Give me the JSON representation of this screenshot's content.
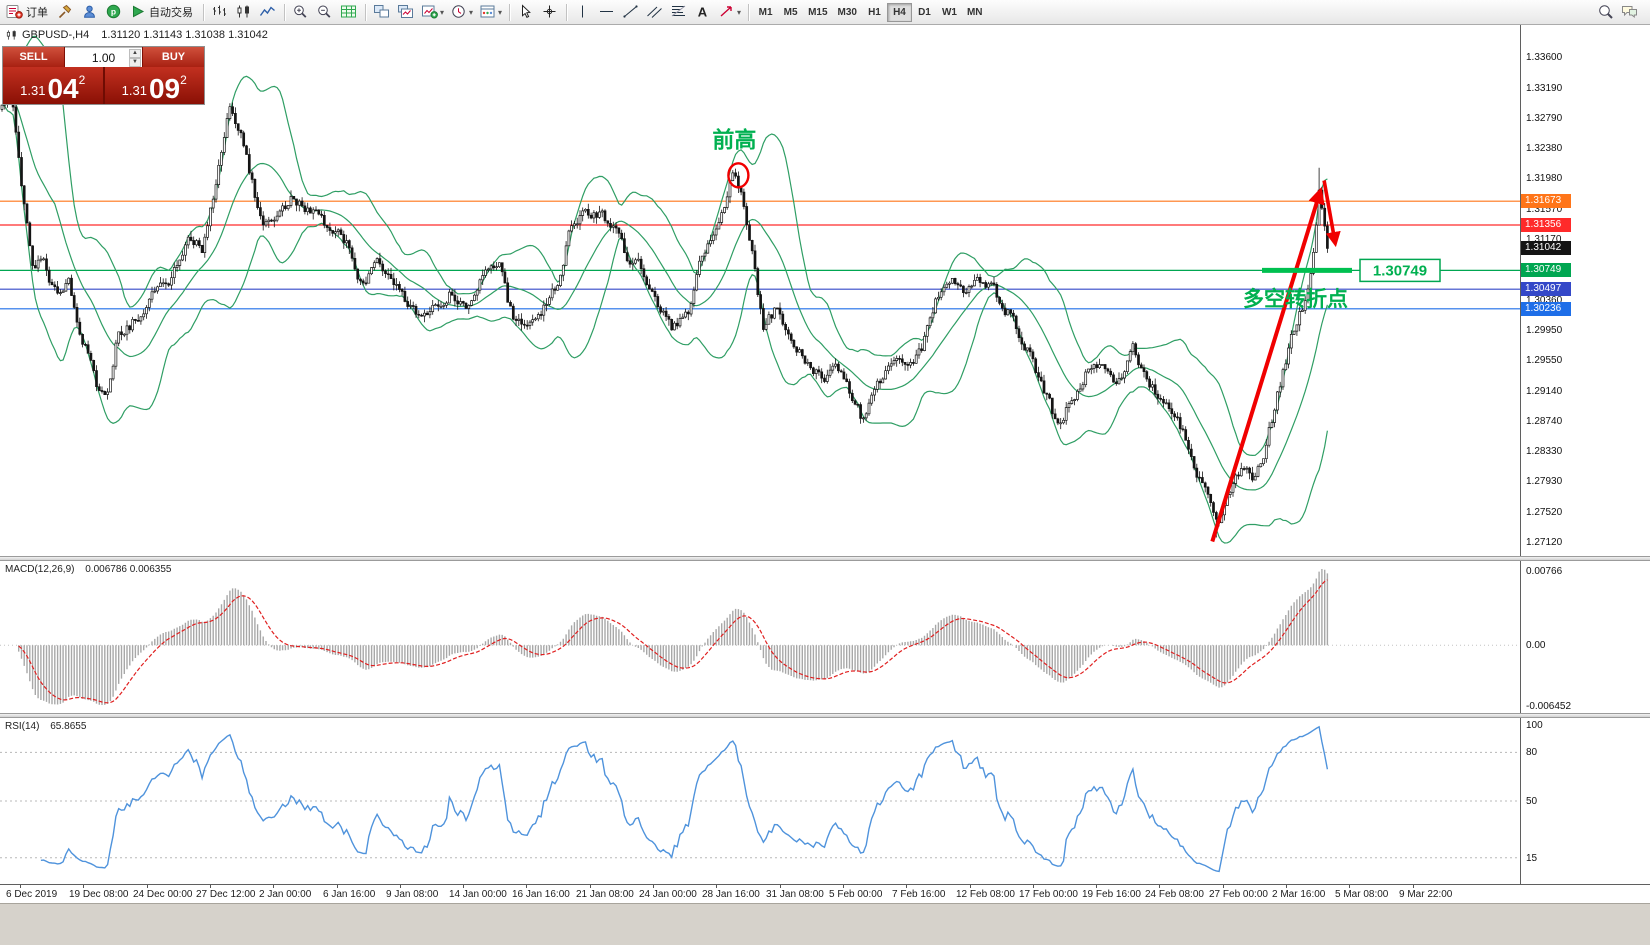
{
  "glyphs": {
    "caret_down": "▾",
    "spinner_up": "▲",
    "spinner_down": "▼"
  },
  "colors": {
    "band_green": "#2f9e64",
    "candle": "#151515",
    "level_orange": "#ff7519",
    "level_red": "#ff2a2a",
    "level_green": "#00a651",
    "level_blue1": "#3448c8",
    "level_blue2": "#1e6ee8",
    "macd_hist": "#a8a8a8",
    "macd_signal": "#e02020",
    "rsi_line": "#4f93dc",
    "annotation_green": "#00b050",
    "annotation_red": "#f00000"
  },
  "toolbar": {
    "groups": [
      {
        "name": "orders",
        "items": [
          {
            "icon": "new-order-icon",
            "label": "订单"
          },
          {
            "icon": "hammer-icon"
          },
          {
            "icon": "profile-icon"
          },
          {
            "icon": "community-icon"
          },
          {
            "icon": "autotrade-icon",
            "label": "自动交易"
          }
        ]
      },
      {
        "name": "chart-types",
        "items": [
          {
            "icon": "bar-chart-icon"
          },
          {
            "icon": "candle-chart-icon"
          },
          {
            "icon": "line-chart-icon"
          }
        ]
      },
      {
        "name": "zoom",
        "items": [
          {
            "icon": "zoom-in-icon"
          },
          {
            "icon": "zoom-out-icon"
          },
          {
            "icon": "indicators-icon"
          }
        ]
      },
      {
        "name": "windows",
        "items": [
          {
            "icon": "tile-windows-icon"
          },
          {
            "icon": "cascade-windows-icon"
          },
          {
            "icon": "new-chart-icon",
            "caret": true
          },
          {
            "icon": "clock-icon",
            "caret": true
          },
          {
            "icon": "template-icon",
            "caret": true
          }
        ]
      },
      {
        "name": "pointer",
        "items": [
          {
            "icon": "cursor-icon"
          },
          {
            "icon": "crosshair-icon"
          }
        ]
      },
      {
        "name": "draw",
        "items": [
          {
            "icon": "vline-icon"
          },
          {
            "icon": "hline-icon"
          },
          {
            "icon": "trendline-icon"
          },
          {
            "icon": "channel-icon"
          },
          {
            "icon": "fibonacci-icon"
          },
          {
            "icon": "text-icon"
          },
          {
            "icon": "arrows-icon",
            "caret": true
          }
        ]
      }
    ],
    "timeframes": [
      "M1",
      "M5",
      "M15",
      "M30",
      "H1",
      "H4",
      "D1",
      "W1",
      "MN"
    ],
    "active_timeframe": "H4",
    "right_items": [
      {
        "icon": "search-icon"
      },
      {
        "icon": "chat-icon"
      }
    ]
  },
  "chart_header": {
    "symbol_period": "GBPUSD-,H4",
    "ohlc": "1.31120 1.31143 1.31038 1.31042"
  },
  "trade_panel": {
    "sell_label": "SELL",
    "buy_label": "BUY",
    "volume": "1.00",
    "sell_price_prefix": "1.31",
    "sell_price_big": "04",
    "sell_price_sup": "2",
    "buy_price_prefix": "1.31",
    "buy_price_big": "09",
    "buy_price_sup": "2"
  },
  "price_axis": {
    "scale_labels": [
      "1.33600",
      "1.33190",
      "1.32790",
      "1.32380",
      "1.31980",
      "1.31570",
      "1.31170",
      "1.30760",
      "1.30360",
      "1.29950",
      "1.29550",
      "1.29140",
      "1.28740",
      "1.28330",
      "1.27930",
      "1.27520",
      "1.27120"
    ],
    "markers": [
      {
        "label": "1.31673",
        "value": 1.31673,
        "bg": "#ff7519"
      },
      {
        "label": "1.31356",
        "value": 1.31356,
        "bg": "#ff2a2a"
      },
      {
        "label": "1.31042",
        "value": 1.31042,
        "bg": "#141414"
      },
      {
        "label": "1.30749",
        "value": 1.30749,
        "bg": "#00a651"
      },
      {
        "label": "1.30497",
        "value": 1.30497,
        "bg": "#3448c8"
      },
      {
        "label": "1.30236",
        "value": 1.30236,
        "bg": "#1e6ee8"
      }
    ]
  },
  "levels": [
    {
      "value": 1.31673,
      "color": "#ff7519"
    },
    {
      "value": 1.31356,
      "color": "#ff2a2a"
    },
    {
      "value": 1.30749,
      "color": "#00a651"
    },
    {
      "value": 1.30497,
      "color": "#3448c8"
    },
    {
      "value": 1.30236,
      "color": "#1e6ee8"
    }
  ],
  "annotations": {
    "prev_high_text": "前高",
    "turning_point_text": "多空转折点",
    "price_tag_text": "1.30749"
  },
  "macd_panel": {
    "label": "MACD(12,26,9)",
    "values": "0.006786 0.006355",
    "axis_top": "0.00766",
    "axis_zero": "0.00",
    "axis_bottom": "-0.006452"
  },
  "rsi_panel": {
    "label": "RSI(14)",
    "value": "65.8655",
    "axis_labels": [
      "100",
      "80",
      "50",
      "15"
    ],
    "levels": [
      80,
      50,
      15
    ]
  },
  "time_axis": [
    "6 Dec 2019",
    "19 Dec 08:00",
    "24 Dec 00:00",
    "27 Dec 12:00",
    "2 Jan 00:00",
    "6 Jan 16:00",
    "9 Jan 08:00",
    "14 Jan 00:00",
    "16 Jan 16:00",
    "21 Jan 08:00",
    "24 Jan 00:00",
    "28 Jan 16:00",
    "31 Jan 08:00",
    "5 Feb 00:00",
    "7 Feb 16:00",
    "12 Feb 08:00",
    "17 Feb 00:00",
    "19 Feb 16:00",
    "24 Feb 08:00",
    "27 Feb 00:00",
    "2 Mar 16:00",
    "5 Mar 08:00",
    "9 Mar 22:00"
  ],
  "chart_data": {
    "type": "candlestick",
    "symbol": "GBPUSD",
    "period": "H4",
    "visible_price_range": [
      1.2693,
      1.3404
    ],
    "last_close": 1.31042,
    "pinned_points": {
      "prev_high": 1.3207,
      "march_spike_high": 1.3212,
      "late_feb_low": 1.2718
    },
    "indicators": [
      "Bollinger Bands",
      "MACD(12,26,9)",
      "RSI(14)"
    ],
    "anchors": [
      [
        0,
        1.329
      ],
      [
        0.006,
        1.3322
      ],
      [
        0.012,
        1.324
      ],
      [
        0.018,
        1.3145
      ],
      [
        0.023,
        1.3085
      ],
      [
        0.03,
        1.3092
      ],
      [
        0.042,
        1.3038
      ],
      [
        0.05,
        1.3068
      ],
      [
        0.057,
        1.301
      ],
      [
        0.064,
        1.2968
      ],
      [
        0.072,
        1.2918
      ],
      [
        0.079,
        1.2905
      ],
      [
        0.087,
        1.2983
      ],
      [
        0.102,
        1.3012
      ],
      [
        0.113,
        1.304
      ],
      [
        0.128,
        1.3066
      ],
      [
        0.14,
        1.3112
      ],
      [
        0.151,
        1.3105
      ],
      [
        0.158,
        1.316
      ],
      [
        0.166,
        1.3238
      ],
      [
        0.172,
        1.3293
      ],
      [
        0.18,
        1.3262
      ],
      [
        0.187,
        1.3205
      ],
      [
        0.196,
        1.3133
      ],
      [
        0.208,
        1.314
      ],
      [
        0.219,
        1.3172
      ],
      [
        0.23,
        1.3158
      ],
      [
        0.242,
        1.314
      ],
      [
        0.253,
        1.3132
      ],
      [
        0.264,
        1.3098
      ],
      [
        0.272,
        1.3052
      ],
      [
        0.283,
        1.3078
      ],
      [
        0.294,
        1.3072
      ],
      [
        0.306,
        1.3026
      ],
      [
        0.317,
        1.3012
      ],
      [
        0.328,
        1.3032
      ],
      [
        0.34,
        1.3046
      ],
      [
        0.351,
        1.3026
      ],
      [
        0.362,
        1.306
      ],
      [
        0.374,
        1.3092
      ],
      [
        0.385,
        1.3012
      ],
      [
        0.396,
        1.2999
      ],
      [
        0.408,
        1.3026
      ],
      [
        0.419,
        1.3053
      ],
      [
        0.43,
        1.3139
      ],
      [
        0.442,
        1.3153
      ],
      [
        0.453,
        1.3146
      ],
      [
        0.464,
        1.3126
      ],
      [
        0.472,
        1.3093
      ],
      [
        0.483,
        1.3079
      ],
      [
        0.494,
        1.3026
      ],
      [
        0.506,
        1.2999
      ],
      [
        0.517,
        1.3012
      ],
      [
        0.528,
        1.3093
      ],
      [
        0.54,
        1.3139
      ],
      [
        0.551,
        1.32
      ],
      [
        0.558,
        1.3179
      ],
      [
        0.566,
        1.3106
      ],
      [
        0.574,
        1.2999
      ],
      [
        0.585,
        1.3026
      ],
      [
        0.596,
        1.2985
      ],
      [
        0.608,
        1.2952
      ],
      [
        0.619,
        1.2932
      ],
      [
        0.63,
        1.2945
      ],
      [
        0.642,
        1.2905
      ],
      [
        0.649,
        1.2875
      ],
      [
        0.66,
        1.2919
      ],
      [
        0.672,
        1.2959
      ],
      [
        0.683,
        1.2945
      ],
      [
        0.694,
        1.2972
      ],
      [
        0.706,
        1.3039
      ],
      [
        0.717,
        1.306
      ],
      [
        0.728,
        1.3046
      ],
      [
        0.74,
        1.3066
      ],
      [
        0.751,
        1.3039
      ],
      [
        0.762,
        1.3012
      ],
      [
        0.774,
        1.2972
      ],
      [
        0.785,
        1.2919
      ],
      [
        0.796,
        1.2871
      ],
      [
        0.808,
        1.2905
      ],
      [
        0.819,
        1.2939
      ],
      [
        0.83,
        1.2945
      ],
      [
        0.842,
        1.2919
      ],
      [
        0.853,
        1.2972
      ],
      [
        0.864,
        1.2932
      ],
      [
        0.875,
        1.2892
      ],
      [
        0.887,
        1.2878
      ],
      [
        0.898,
        1.2825
      ],
      [
        0.91,
        1.2765
      ],
      [
        0.917,
        1.2732
      ],
      [
        0.927,
        1.2785
      ],
      [
        0.936,
        1.2818
      ],
      [
        0.945,
        1.2798
      ],
      [
        0.952,
        1.2832
      ],
      [
        0.962,
        1.2905
      ],
      [
        0.972,
        1.2979
      ],
      [
        0.981,
        1.3026
      ],
      [
        0.988,
        1.3079
      ],
      [
        0.994,
        1.3186
      ],
      [
        1,
        1.31042
      ]
    ]
  }
}
